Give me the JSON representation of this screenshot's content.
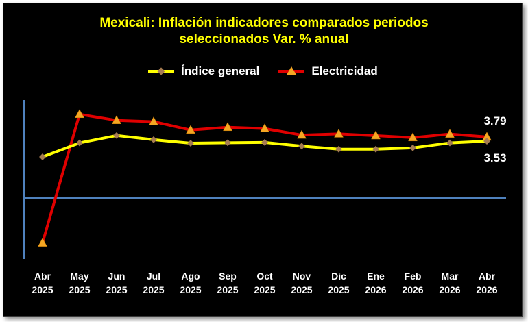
{
  "chart_data": {
    "type": "line",
    "title_lines": [
      "Mexicali: Inflación indicadores comparados periodos",
      "seleccionados Var. % anual"
    ],
    "categories": [
      [
        "Abr",
        "2025"
      ],
      [
        "May",
        "2025"
      ],
      [
        "Jun",
        "2025"
      ],
      [
        "Jul",
        "2025"
      ],
      [
        "Ago",
        "2025"
      ],
      [
        "Sep",
        "2025"
      ],
      [
        "Oct",
        "2025"
      ],
      [
        "Nov",
        "2025"
      ],
      [
        "Dic",
        "2025"
      ],
      [
        "Ene",
        "2026"
      ],
      [
        "Feb",
        "2026"
      ],
      [
        "Mar",
        "2026"
      ],
      [
        "Abr",
        "2026"
      ]
    ],
    "series": [
      {
        "name": "Índice general",
        "color": "#ffff00",
        "marker_color": "#a67c52",
        "values": [
          2.55,
          3.42,
          3.88,
          3.62,
          3.4,
          3.43,
          3.45,
          3.22,
          3.03,
          3.03,
          3.11,
          3.42,
          3.53
        ]
      },
      {
        "name": "Electricidad",
        "color": "#e00000",
        "marker_color": "#f5a623",
        "values": [
          -2.8,
          5.2,
          4.82,
          4.74,
          4.22,
          4.39,
          4.31,
          3.91,
          3.98,
          3.87,
          3.75,
          3.97,
          3.79
        ]
      }
    ],
    "data_labels": [
      {
        "series": "Electricidad",
        "index": 12,
        "text": "3.79"
      },
      {
        "series": "Índice general",
        "index": 12,
        "text": "3.53"
      }
    ],
    "ylim": [
      -3.2,
      6.0
    ],
    "y_axis_ticks_shown": false,
    "gridlines": false,
    "legend_position": "top",
    "colors": {
      "background": "#000000",
      "title": "#ffff00",
      "axis": "#4f81bd",
      "text": "#ffffff"
    }
  }
}
